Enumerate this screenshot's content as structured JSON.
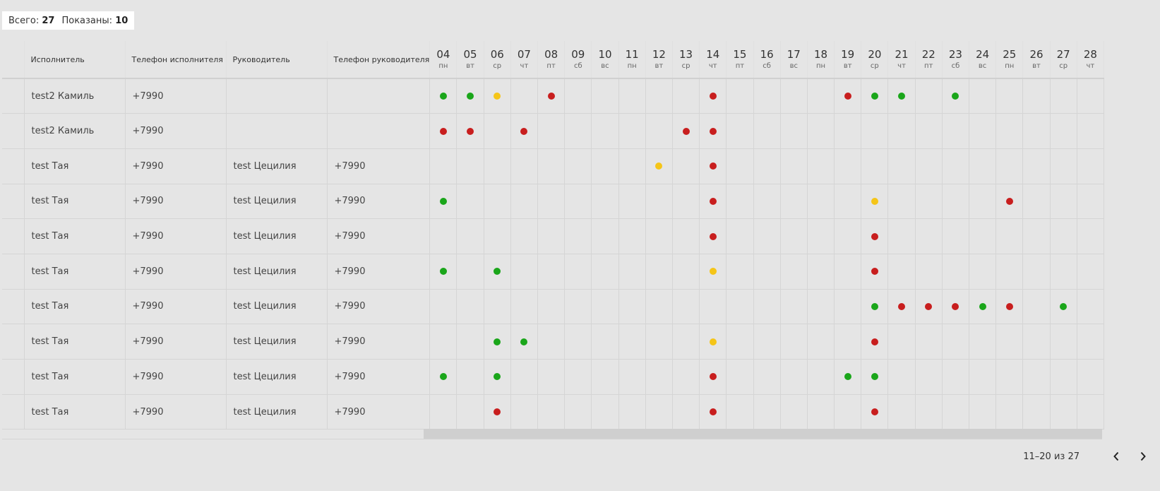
{
  "totals": {
    "total_label": "Всего:",
    "total_value": "27",
    "shown_label": "Показаны:",
    "shown_value": "10"
  },
  "columns": {
    "executor": "Исполнитель",
    "executor_phone": "Телефон исполнителя",
    "manager": "Руководитель",
    "manager_phone": "Телефон руководителя"
  },
  "days": [
    {
      "num": "04",
      "wd": "пн"
    },
    {
      "num": "05",
      "wd": "вт"
    },
    {
      "num": "06",
      "wd": "ср"
    },
    {
      "num": "07",
      "wd": "чт"
    },
    {
      "num": "08",
      "wd": "пт"
    },
    {
      "num": "09",
      "wd": "сб"
    },
    {
      "num": "10",
      "wd": "вс"
    },
    {
      "num": "11",
      "wd": "пн"
    },
    {
      "num": "12",
      "wd": "вт"
    },
    {
      "num": "13",
      "wd": "ср"
    },
    {
      "num": "14",
      "wd": "чт"
    },
    {
      "num": "15",
      "wd": "пт"
    },
    {
      "num": "16",
      "wd": "сб"
    },
    {
      "num": "17",
      "wd": "вс"
    },
    {
      "num": "18",
      "wd": "пн"
    },
    {
      "num": "19",
      "wd": "вт"
    },
    {
      "num": "20",
      "wd": "ср"
    },
    {
      "num": "21",
      "wd": "чт"
    },
    {
      "num": "22",
      "wd": "пт"
    },
    {
      "num": "23",
      "wd": "сб"
    },
    {
      "num": "24",
      "wd": "вс"
    },
    {
      "num": "25",
      "wd": "пн"
    },
    {
      "num": "26",
      "wd": "вт"
    },
    {
      "num": "27",
      "wd": "ср"
    },
    {
      "num": "28",
      "wd": "чт"
    }
  ],
  "status_colors": {
    "green": "#1aa61a",
    "red": "#c81e1e",
    "yellow": "#f5c518"
  },
  "rows": [
    {
      "executor": "test2 Камиль",
      "executor_phone": "+7990",
      "manager": "",
      "manager_phone": "",
      "marks": {
        "04": "green",
        "05": "green",
        "06": "yellow",
        "08": "red",
        "14": "red",
        "19": "red",
        "20": "green",
        "21": "green",
        "23": "green"
      }
    },
    {
      "executor": "test2 Камиль",
      "executor_phone": "+7990",
      "manager": "",
      "manager_phone": "",
      "marks": {
        "04": "red",
        "05": "red",
        "07": "red",
        "13": "red",
        "14": "red"
      }
    },
    {
      "executor": "test Тая",
      "executor_phone": "+7990",
      "manager": "test Цецилия",
      "manager_phone": "+7990",
      "marks": {
        "12": "yellow",
        "14": "red"
      }
    },
    {
      "executor": "test Тая",
      "executor_phone": "+7990",
      "manager": "test Цецилия",
      "manager_phone": "+7990",
      "marks": {
        "04": "green",
        "14": "red",
        "20": "yellow",
        "25": "red"
      }
    },
    {
      "executor": "test Тая",
      "executor_phone": "+7990",
      "manager": "test Цецилия",
      "manager_phone": "+7990",
      "marks": {
        "14": "red",
        "20": "red"
      }
    },
    {
      "executor": "test Тая",
      "executor_phone": "+7990",
      "manager": "test Цецилия",
      "manager_phone": "+7990",
      "marks": {
        "04": "green",
        "06": "green",
        "14": "yellow",
        "20": "red"
      }
    },
    {
      "executor": "test Тая",
      "executor_phone": "+7990",
      "manager": "test Цецилия",
      "manager_phone": "+7990",
      "marks": {
        "20": "green",
        "21": "red",
        "22": "red",
        "23": "red",
        "24": "green",
        "25": "red",
        "27": "green"
      }
    },
    {
      "executor": "test Тая",
      "executor_phone": "+7990",
      "manager": "test Цецилия",
      "manager_phone": "+7990",
      "marks": {
        "06": "green",
        "07": "green",
        "14": "yellow",
        "20": "red"
      }
    },
    {
      "executor": "test Тая",
      "executor_phone": "+7990",
      "manager": "test Цецилия",
      "manager_phone": "+7990",
      "marks": {
        "04": "green",
        "06": "green",
        "14": "red",
        "19": "green",
        "20": "green"
      }
    },
    {
      "executor": "test Тая",
      "executor_phone": "+7990",
      "manager": "test Цецилия",
      "manager_phone": "+7990",
      "marks": {
        "06": "red",
        "14": "red",
        "20": "red"
      }
    }
  ],
  "pager": {
    "range": "11–20 из 27",
    "prev_icon": "chevron-left-icon",
    "next_icon": "chevron-right-icon"
  }
}
